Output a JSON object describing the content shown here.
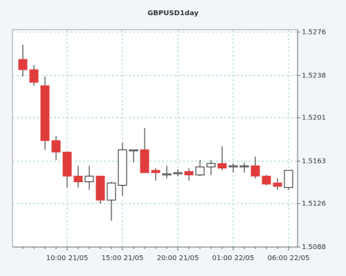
{
  "chart_data": {
    "type": "candlestick",
    "title": "GBPUSD1day",
    "categories": [
      null,
      null,
      null,
      null,
      "10:00 21/05",
      null,
      null,
      null,
      null,
      "15:00 21/05",
      null,
      null,
      null,
      null,
      "20:00 21/05",
      null,
      null,
      null,
      null,
      "01:00 22/05",
      null,
      null,
      null,
      null,
      "06:00 22/05"
    ],
    "open": [
      1.5252,
      1.5243,
      1.5229,
      1.5181,
      1.5171,
      1.515,
      1.5145,
      1.515,
      1.5129,
      1.5142,
      1.5172,
      1.5173,
      1.5155,
      1.5151,
      1.5152,
      1.5154,
      1.5151,
      1.5158,
      1.5161,
      1.5158,
      1.5158,
      1.5159,
      1.515,
      1.5144,
      1.514
    ],
    "high": [
      1.5265,
      1.5247,
      1.5237,
      1.5185,
      1.5171,
      1.5159,
      1.5159,
      1.515,
      1.5145,
      1.5179,
      1.5173,
      1.5192,
      1.5157,
      1.5159,
      1.5156,
      1.5157,
      1.5164,
      1.5164,
      1.5176,
      1.5161,
      1.5162,
      1.5167,
      1.5151,
      1.5148,
      1.5155
    ],
    "low": [
      1.5237,
      1.5229,
      1.5173,
      1.5164,
      1.514,
      1.514,
      1.5138,
      1.5126,
      1.5111,
      1.5133,
      1.5162,
      1.5153,
      1.5146,
      1.5148,
      1.515,
      1.5146,
      1.515,
      1.5151,
      1.5155,
      1.5153,
      1.5153,
      1.5148,
      1.5142,
      1.5138,
      1.5138
    ],
    "close": [
      1.5243,
      1.5232,
      1.5181,
      1.5171,
      1.515,
      1.5145,
      1.515,
      1.5129,
      1.5144,
      1.5173,
      1.5173,
      1.5153,
      1.5153,
      1.5152,
      1.5153,
      1.5151,
      1.5158,
      1.5161,
      1.5157,
      1.5159,
      1.5159,
      1.515,
      1.5143,
      1.5141,
      1.5155
    ],
    "up_color": "#ffffff",
    "down_color": "#e03c3c",
    "ylim": [
      1.5088,
      1.5278
    ],
    "yticks": [
      1.5088,
      1.5126,
      1.5163,
      1.5201,
      1.5238,
      1.5276
    ],
    "grid": true
  }
}
